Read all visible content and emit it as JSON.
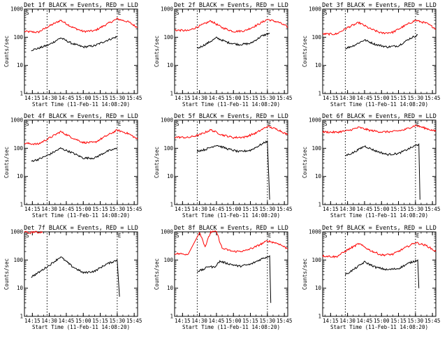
{
  "figure": {
    "xtick_labels": [
      "14:15",
      "14:30",
      "14:45",
      "15:00",
      "15:15",
      "15:30",
      "15:45"
    ],
    "ytick_labels": [
      "1",
      "10",
      "100",
      "1000"
    ],
    "ylabel": "Counts/sec",
    "xlabel": "Start Time (11-Feb-11 14:08:20)",
    "marker_left": "S",
    "marker_right": "E",
    "colors": {
      "events": "#000000",
      "lld": "#ff0000",
      "axes": "#000000"
    }
  },
  "chart_data": [
    {
      "type": "line",
      "title": "Det 1f BLACK = Events, RED = LLD",
      "xlabel": "Start Time (11-Feb-11 14:08:20)",
      "ylabel": "Counts/sec",
      "x_range": [
        "14:08",
        "15:48"
      ],
      "ylim": [
        1,
        1000
      ],
      "y_scale": "log",
      "marker_lines": [
        "14:28",
        "15:30"
      ],
      "series": [
        {
          "name": "BLACK = Events",
          "color": "#000000",
          "x": [
            "14:14",
            "14:20",
            "14:30",
            "14:40",
            "14:50",
            "15:00",
            "15:10",
            "15:20",
            "15:30"
          ],
          "values": [
            35,
            40,
            55,
            95,
            60,
            45,
            50,
            75,
            105
          ]
        },
        {
          "name": "RED = LLD",
          "color": "#ff0000",
          "x": [
            "14:08",
            "14:20",
            "14:30",
            "14:40",
            "14:50",
            "15:00",
            "15:10",
            "15:20",
            "15:30",
            "15:40",
            "15:48"
          ],
          "values": [
            160,
            150,
            250,
            400,
            230,
            160,
            170,
            280,
            450,
            350,
            220
          ]
        }
      ]
    },
    {
      "type": "line",
      "title": "Det 2f BLACK = Events, RED = LLD",
      "xlabel": "Start Time (11-Feb-11 14:08:20)",
      "ylabel": "Counts/sec",
      "x_range": [
        "14:08",
        "15:48"
      ],
      "ylim": [
        1,
        1000
      ],
      "y_scale": "log",
      "marker_lines": [
        "14:28",
        "15:30"
      ],
      "series": [
        {
          "name": "BLACK = Events",
          "color": "#000000",
          "x": [
            "14:28",
            "14:35",
            "14:45",
            "14:55",
            "15:05",
            "15:15",
            "15:25",
            "15:32"
          ],
          "values": [
            40,
            55,
            95,
            65,
            55,
            60,
            110,
            140
          ]
        },
        {
          "name": "RED = LLD",
          "color": "#ff0000",
          "x": [
            "14:08",
            "14:20",
            "14:30",
            "14:40",
            "14:50",
            "15:00",
            "15:10",
            "15:20",
            "15:30",
            "15:40",
            "15:48"
          ],
          "values": [
            180,
            170,
            250,
            380,
            220,
            160,
            170,
            260,
            430,
            340,
            230
          ]
        }
      ]
    },
    {
      "type": "line",
      "title": "Det 3f BLACK = Events, RED = LLD",
      "xlabel": "Start Time (11-Feb-11 14:08:20)",
      "ylabel": "Counts/sec",
      "x_range": [
        "14:08",
        "15:48"
      ],
      "ylim": [
        1,
        1000
      ],
      "y_scale": "log",
      "marker_lines": [
        "14:28",
        "15:30"
      ],
      "series": [
        {
          "name": "BLACK = Events",
          "color": "#000000",
          "x": [
            "14:28",
            "14:35",
            "14:45",
            "14:55",
            "15:05",
            "15:15",
            "15:25",
            "15:32"
          ],
          "values": [
            40,
            50,
            80,
            55,
            45,
            50,
            90,
            120
          ]
        },
        {
          "name": "RED = LLD",
          "color": "#ff0000",
          "x": [
            "14:08",
            "14:20",
            "14:30",
            "14:40",
            "14:50",
            "15:00",
            "15:10",
            "15:20",
            "15:30",
            "15:40",
            "15:48"
          ],
          "values": [
            130,
            130,
            220,
            330,
            200,
            140,
            150,
            250,
            400,
            310,
            200
          ]
        }
      ]
    },
    {
      "type": "line",
      "title": "Det 4f BLACK = Events, RED = LLD",
      "xlabel": "Start Time (11-Feb-11 14:08:20)",
      "ylabel": "Counts/sec",
      "x_range": [
        "14:08",
        "15:48"
      ],
      "ylim": [
        1,
        1000
      ],
      "y_scale": "log",
      "marker_lines": [
        "14:28",
        "15:30"
      ],
      "series": [
        {
          "name": "BLACK = Events",
          "color": "#000000",
          "x": [
            "14:14",
            "14:20",
            "14:30",
            "14:40",
            "14:50",
            "15:00",
            "15:10",
            "15:20",
            "15:30"
          ],
          "values": [
            35,
            40,
            60,
            100,
            70,
            45,
            45,
            75,
            100
          ]
        },
        {
          "name": "RED = LLD",
          "color": "#ff0000",
          "x": [
            "14:08",
            "14:20",
            "14:30",
            "14:40",
            "14:50",
            "15:00",
            "15:10",
            "15:20",
            "15:30",
            "15:40",
            "15:48"
          ],
          "values": [
            150,
            140,
            230,
            390,
            240,
            160,
            160,
            270,
            440,
            330,
            210
          ]
        }
      ]
    },
    {
      "type": "line",
      "title": "Det 5f BLACK = Events, RED = LLD",
      "xlabel": "Start Time (11-Feb-11 14:08:20)",
      "ylabel": "Counts/sec",
      "x_range": [
        "14:08",
        "15:48"
      ],
      "ylim": [
        1,
        1000
      ],
      "y_scale": "log",
      "marker_lines": [
        "14:28",
        "15:30"
      ],
      "series": [
        {
          "name": "BLACK = Events",
          "color": "#000000",
          "x": [
            "14:28",
            "14:35",
            "14:45",
            "14:55",
            "15:05",
            "15:15",
            "15:25",
            "15:30",
            "15:32"
          ],
          "values": [
            80,
            90,
            130,
            95,
            75,
            85,
            140,
            180,
            1.5
          ]
        },
        {
          "name": "RED = LLD",
          "color": "#ff0000",
          "x": [
            "14:08",
            "14:20",
            "14:30",
            "14:40",
            "14:50",
            "15:00",
            "15:10",
            "15:20",
            "15:30",
            "15:40",
            "15:48"
          ],
          "values": [
            250,
            240,
            300,
            450,
            300,
            240,
            250,
            350,
            600,
            450,
            300
          ]
        }
      ]
    },
    {
      "type": "line",
      "title": "Det 6f BLACK = Events, RED = LLD",
      "xlabel": "Start Time (11-Feb-11 14:08:20)",
      "ylabel": "Counts/sec",
      "x_range": [
        "14:08",
        "15:48"
      ],
      "ylim": [
        1,
        1000
      ],
      "y_scale": "log",
      "marker_lines": [
        "14:28",
        "15:30"
      ],
      "series": [
        {
          "name": "BLACK = Events",
          "color": "#000000",
          "x": [
            "14:28",
            "14:35",
            "14:45",
            "14:55",
            "15:05",
            "15:15",
            "15:25",
            "15:33",
            "15:34"
          ],
          "values": [
            55,
            70,
            120,
            80,
            60,
            65,
            100,
            140,
            1.5
          ]
        },
        {
          "name": "RED = LLD",
          "color": "#ff0000",
          "x": [
            "14:08",
            "14:20",
            "14:30",
            "14:40",
            "14:50",
            "15:00",
            "15:10",
            "15:20",
            "15:30",
            "15:40",
            "15:48"
          ],
          "values": [
            380,
            370,
            420,
            550,
            430,
            380,
            390,
            450,
            650,
            500,
            400
          ]
        }
      ]
    },
    {
      "type": "line",
      "title": "Det 7f BLACK = Events, RED = LLD",
      "xlabel": "Start Time (11-Feb-11 14:08:20)",
      "ylabel": "Counts/sec",
      "x_range": [
        "14:08",
        "15:48"
      ],
      "ylim": [
        1,
        1000
      ],
      "y_scale": "log",
      "marker_lines": [
        "14:28",
        "15:30"
      ],
      "series": [
        {
          "name": "BLACK = Events",
          "color": "#000000",
          "x": [
            "14:14",
            "14:20",
            "14:30",
            "14:40",
            "14:50",
            "15:00",
            "15:10",
            "15:20",
            "15:30",
            "15:32"
          ],
          "values": [
            25,
            35,
            65,
            130,
            60,
            35,
            40,
            70,
            100,
            5
          ]
        },
        {
          "name": "RED = LLD",
          "color": "#ff0000",
          "x": [
            "14:08",
            "14:12",
            "14:16",
            "14:20",
            "14:24"
          ],
          "values": [
            1000,
            900,
            1000,
            950,
            1000
          ]
        }
      ]
    },
    {
      "type": "line",
      "title": "Det 8f BLACK = Events, RED = LLD",
      "xlabel": "Start Time (11-Feb-11 14:08:20)",
      "ylabel": "Counts/sec",
      "x_range": [
        "14:08",
        "15:48"
      ],
      "ylim": [
        1,
        1000
      ],
      "y_scale": "log",
      "marker_lines": [
        "14:28",
        "15:30"
      ],
      "series": [
        {
          "name": "BLACK = Events",
          "color": "#000000",
          "x": [
            "14:28",
            "14:33",
            "14:38",
            "14:43",
            "14:48",
            "14:55",
            "15:05",
            "15:15",
            "15:25",
            "15:32",
            "15:33"
          ],
          "values": [
            40,
            45,
            60,
            55,
            90,
            75,
            60,
            70,
            110,
            140,
            3
          ]
        },
        {
          "name": "RED = LLD",
          "color": "#ff0000",
          "x": [
            "14:08",
            "14:20",
            "14:30",
            "14:35",
            "14:40",
            "14:45",
            "14:50",
            "15:00",
            "15:10",
            "15:20",
            "15:30",
            "15:40",
            "15:48"
          ],
          "values": [
            170,
            160,
            1000,
            300,
            1000,
            1000,
            260,
            200,
            210,
            300,
            480,
            380,
            250
          ]
        }
      ]
    },
    {
      "type": "line",
      "title": "Det 9f BLACK = Events, RED = LLD",
      "xlabel": "Start Time (11-Feb-11 14:08:20)",
      "ylabel": "Counts/sec",
      "x_range": [
        "14:08",
        "15:48"
      ],
      "ylim": [
        1,
        1000
      ],
      "y_scale": "log",
      "marker_lines": [
        "14:28",
        "15:30"
      ],
      "series": [
        {
          "name": "BLACK = Events",
          "color": "#000000",
          "x": [
            "14:28",
            "14:35",
            "14:45",
            "14:55",
            "15:05",
            "15:15",
            "15:25",
            "15:32",
            "15:33"
          ],
          "values": [
            30,
            45,
            85,
            55,
            45,
            50,
            80,
            100,
            10
          ]
        },
        {
          "name": "RED = LLD",
          "color": "#ff0000",
          "x": [
            "14:08",
            "14:20",
            "14:30",
            "14:40",
            "14:50",
            "15:00",
            "15:10",
            "15:20",
            "15:30",
            "15:40",
            "15:48"
          ],
          "values": [
            140,
            130,
            230,
            380,
            220,
            150,
            160,
            260,
            420,
            320,
            200
          ]
        }
      ]
    }
  ]
}
